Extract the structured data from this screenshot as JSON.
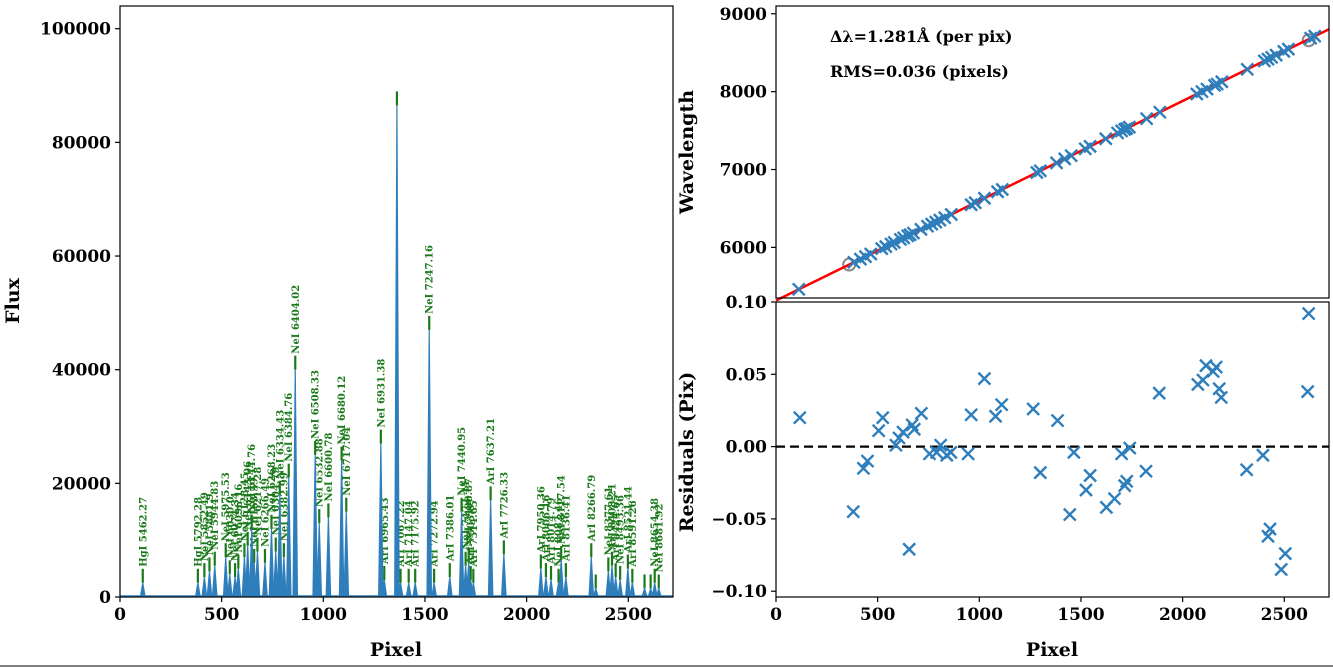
{
  "chart_data": [
    {
      "type": "line",
      "xlabel": "Pixel",
      "ylabel": "Flux",
      "xlim": [
        0,
        2720
      ],
      "ylim": [
        0,
        104000
      ],
      "xticks": [
        0,
        500,
        1000,
        1500,
        2000,
        2500
      ],
      "yticks": [
        0,
        20000,
        40000,
        60000,
        80000,
        100000
      ],
      "colors": {
        "spectrum": "#2f7ebc",
        "marker": "#1a7a1a",
        "label": "#1a7a1a"
      },
      "peaks": [
        {
          "x": 112,
          "y": 2500
        },
        {
          "x": 383,
          "y": 2500
        },
        {
          "x": 415,
          "y": 3500
        },
        {
          "x": 440,
          "y": 4500
        },
        {
          "x": 466,
          "y": 5500
        },
        {
          "x": 520,
          "y": 7000
        },
        {
          "x": 540,
          "y": 4000
        },
        {
          "x": 566,
          "y": 3500
        },
        {
          "x": 582,
          "y": 5000
        },
        {
          "x": 612,
          "y": 7000
        },
        {
          "x": 628,
          "y": 9000
        },
        {
          "x": 648,
          "y": 12000
        },
        {
          "x": 660,
          "y": 6000
        },
        {
          "x": 676,
          "y": 8000
        },
        {
          "x": 713,
          "y": 6000
        },
        {
          "x": 745,
          "y": 12000
        },
        {
          "x": 766,
          "y": 8000
        },
        {
          "x": 786,
          "y": 18000
        },
        {
          "x": 806,
          "y": 7000
        },
        {
          "x": 830,
          "y": 21000
        },
        {
          "x": 862,
          "y": 40000
        },
        {
          "x": 960,
          "y": 25000
        },
        {
          "x": 980,
          "y": 13000
        },
        {
          "x": 1025,
          "y": 14000
        },
        {
          "x": 1090,
          "y": 24000
        },
        {
          "x": 1113,
          "y": 15000
        },
        {
          "x": 1283,
          "y": 27000
        },
        {
          "x": 1300,
          "y": 3000
        },
        {
          "x": 1362,
          "y": 86500
        },
        {
          "x": 1380,
          "y": 2500
        },
        {
          "x": 1420,
          "y": 2500
        },
        {
          "x": 1452,
          "y": 2500
        },
        {
          "x": 1521,
          "y": 47000
        },
        {
          "x": 1545,
          "y": 2500
        },
        {
          "x": 1622,
          "y": 3500
        },
        {
          "x": 1680,
          "y": 15000
        },
        {
          "x": 1700,
          "y": 5500
        },
        {
          "x": 1715,
          "y": 6000
        },
        {
          "x": 1725,
          "y": 3000
        },
        {
          "x": 1738,
          "y": 2500
        },
        {
          "x": 1823,
          "y": 17000
        },
        {
          "x": 1888,
          "y": 7500
        },
        {
          "x": 2070,
          "y": 5000
        },
        {
          "x": 2095,
          "y": 3500
        },
        {
          "x": 2120,
          "y": 3000
        },
        {
          "x": 2157,
          "y": 2500
        },
        {
          "x": 2170,
          "y": 6500
        },
        {
          "x": 2193,
          "y": 3500
        },
        {
          "x": 2318,
          "y": 7000
        },
        {
          "x": 2340,
          "y": 1500
        },
        {
          "x": 2402,
          "y": 4500
        },
        {
          "x": 2420,
          "y": 5500
        },
        {
          "x": 2438,
          "y": 3500
        },
        {
          "x": 2460,
          "y": 3000
        },
        {
          "x": 2498,
          "y": 5000
        },
        {
          "x": 2520,
          "y": 2500
        },
        {
          "x": 2580,
          "y": 1500
        },
        {
          "x": 2610,
          "y": 1500
        },
        {
          "x": 2630,
          "y": 2500
        },
        {
          "x": 2650,
          "y": 1500
        }
      ],
      "line_labels": [
        {
          "x": 112,
          "y": 2500,
          "text": "HgI 5462.27"
        },
        {
          "x": 383,
          "y": 2500,
          "text": "HgI 5792.28"
        },
        {
          "x": 415,
          "y": 3500,
          "text": "NeI 5852.49"
        },
        {
          "x": 440,
          "y": 4500,
          "text": "NeI 5881.9"
        },
        {
          "x": 466,
          "y": 5500,
          "text": "NeI 5944.83"
        },
        {
          "x": 520,
          "y": 7000,
          "text": "NeI 5975.53"
        },
        {
          "x": 540,
          "y": 4000,
          "text": "NeI 6030.0"
        },
        {
          "x": 566,
          "y": 3500,
          "text": "NeI 6074.34"
        },
        {
          "x": 582,
          "y": 5000,
          "text": "NeI 6096.16"
        },
        {
          "x": 612,
          "y": 7000,
          "text": "NeI 6128.45"
        },
        {
          "x": 628,
          "y": 9000,
          "text": "NeI 6143.06"
        },
        {
          "x": 648,
          "y": 12000,
          "text": "NeI 6144.76"
        },
        {
          "x": 660,
          "y": 6000,
          "text": "NeI 6163.59"
        },
        {
          "x": 676,
          "y": 8000,
          "text": "NeI 6217.28"
        },
        {
          "x": 713,
          "y": 6000,
          "text": "NeI 6266.49"
        },
        {
          "x": 745,
          "y": 12000,
          "text": "NeI 6268.23"
        },
        {
          "x": 766,
          "y": 8000,
          "text": "NeI 6304.79"
        },
        {
          "x": 786,
          "y": 18000,
          "text": "NeI 6334.43"
        },
        {
          "x": 806,
          "y": 7000,
          "text": "NeI 6382.99"
        },
        {
          "x": 830,
          "y": 21000,
          "text": "NeI 6384.76"
        },
        {
          "x": 862,
          "y": 40000,
          "text": "NeI 6404.02"
        },
        {
          "x": 960,
          "y": 25000,
          "text": "NeI 6508.33"
        },
        {
          "x": 980,
          "y": 13000,
          "text": "NeI 6532.88"
        },
        {
          "x": 1025,
          "y": 14000,
          "text": "NeI 6600.78"
        },
        {
          "x": 1090,
          "y": 24000,
          "text": "NeI 6680.12"
        },
        {
          "x": 1113,
          "y": 15000,
          "text": "NeI 6717.04"
        },
        {
          "x": 1283,
          "y": 27000,
          "text": "NeI 6931.38"
        },
        {
          "x": 1300,
          "y": 3000,
          "text": "ArI 6965.43"
        },
        {
          "x": 1380,
          "y": 2500,
          "text": "ArI 7067.22"
        },
        {
          "x": 1420,
          "y": 2500,
          "text": "ArI 7147.04"
        },
        {
          "x": 1452,
          "y": 2500,
          "text": "ArI 7175.92"
        },
        {
          "x": 1521,
          "y": 47000,
          "text": "NeI 7247.16"
        },
        {
          "x": 1545,
          "y": 2500,
          "text": "ArI 7272.94"
        },
        {
          "x": 1622,
          "y": 3500,
          "text": "ArI 7386.01"
        },
        {
          "x": 1680,
          "y": 15000,
          "text": "NeI 7440.95"
        },
        {
          "x": 1700,
          "y": 5500,
          "text": "NeI 7472.44"
        },
        {
          "x": 1715,
          "y": 6000,
          "text": "NeI 7488.87"
        },
        {
          "x": 1725,
          "y": 3000,
          "text": "ArI 7503.87"
        },
        {
          "x": 1738,
          "y": 2500,
          "text": "ArI 7514.65"
        },
        {
          "x": 1823,
          "y": 17000,
          "text": "ArI 7637.21"
        },
        {
          "x": 1888,
          "y": 7500,
          "text": "ArI 7726.33"
        },
        {
          "x": 2070,
          "y": 5000,
          "text": "ArI 7950.36"
        },
        {
          "x": 2095,
          "y": 3500,
          "text": "ArI 8006.16"
        },
        {
          "x": 2120,
          "y": 3000,
          "text": "ArI 8014.79"
        },
        {
          "x": 2157,
          "y": 2500,
          "text": "NeI 8082.46"
        },
        {
          "x": 2170,
          "y": 6500,
          "text": "NeI 8117.54"
        },
        {
          "x": 2193,
          "y": 3500,
          "text": "ArI 8136.41"
        },
        {
          "x": 2318,
          "y": 7000,
          "text": "ArI 8266.79"
        },
        {
          "x": 2402,
          "y": 4500,
          "text": "NeI 8377.61"
        },
        {
          "x": 2420,
          "y": 5500,
          "text": "ArI 8408.21"
        },
        {
          "x": 2438,
          "y": 3500,
          "text": "ArI 8424.65"
        },
        {
          "x": 2460,
          "y": 3000,
          "text": "NeI 8495.36"
        },
        {
          "x": 2498,
          "y": 5000,
          "text": "ArI 8521.44"
        },
        {
          "x": 2520,
          "y": 2500,
          "text": "ArI 8591.26"
        },
        {
          "x": 2630,
          "y": 2500,
          "text": "NeI 8654.38"
        },
        {
          "x": 2650,
          "y": 1500,
          "text": "NeI 8681.92"
        }
      ]
    },
    {
      "type": "scatter",
      "xlabel": "",
      "ylabel": "Wavelength",
      "xlim": [
        0,
        2720
      ],
      "ylim": [
        5350,
        9100
      ],
      "yticks": [
        6000,
        7000,
        8000,
        9000
      ],
      "annotations": [
        "Δλ=1.281Å (per pix)",
        "RMS=0.036 (pixels)"
      ],
      "fit_line": {
        "x": [
          0,
          2720
        ],
        "y": [
          5318,
          8802
        ],
        "color": "#ff0000"
      },
      "marker_color": "#2f7ebc",
      "rejected_color": "#888888",
      "points": [
        112,
        383,
        415,
        440,
        466,
        520,
        540,
        566,
        582,
        612,
        628,
        648,
        660,
        676,
        713,
        745,
        766,
        786,
        806,
        830,
        862,
        960,
        980,
        1025,
        1090,
        1113,
        1283,
        1300,
        1380,
        1420,
        1452,
        1521,
        1545,
        1622,
        1680,
        1700,
        1715,
        1725,
        1738,
        1823,
        1888,
        2070,
        2095,
        2120,
        2157,
        2170,
        2193,
        2318,
        2402,
        2420,
        2438,
        2460,
        2498,
        2520,
        2630,
        2650
      ],
      "rejected": [
        {
          "x": 360,
          "y": 5780
        },
        {
          "x": 2620,
          "y": 8660
        }
      ]
    },
    {
      "type": "scatter",
      "xlabel": "Pixel",
      "ylabel": "Residuals (Pix)",
      "xlim": [
        0,
        2720
      ],
      "ylim": [
        -0.104,
        0.1
      ],
      "xticks": [
        0,
        500,
        1000,
        1500,
        2000,
        2500
      ],
      "yticks": [
        -0.1,
        -0.05,
        0.0,
        0.05,
        0.1
      ],
      "ytick_labels": [
        "−0.10",
        "−0.05",
        "0.00",
        "0.05",
        "0.10"
      ],
      "reference_line": 0,
      "marker_color": "#2f7ebc",
      "points": [
        {
          "x": 117,
          "y": 0.02
        },
        {
          "x": 380,
          "y": -0.045
        },
        {
          "x": 430,
          "y": -0.015
        },
        {
          "x": 450,
          "y": -0.01
        },
        {
          "x": 505,
          "y": 0.011
        },
        {
          "x": 525,
          "y": 0.02
        },
        {
          "x": 590,
          "y": 0.001
        },
        {
          "x": 605,
          "y": 0.006
        },
        {
          "x": 625,
          "y": 0.01
        },
        {
          "x": 655,
          "y": -0.071
        },
        {
          "x": 670,
          "y": 0.015
        },
        {
          "x": 680,
          "y": 0.012
        },
        {
          "x": 715,
          "y": 0.023
        },
        {
          "x": 755,
          "y": -0.005
        },
        {
          "x": 790,
          "y": -0.004
        },
        {
          "x": 810,
          "y": 0.001
        },
        {
          "x": 840,
          "y": -0.006
        },
        {
          "x": 860,
          "y": -0.004
        },
        {
          "x": 945,
          "y": -0.005
        },
        {
          "x": 960,
          "y": 0.022
        },
        {
          "x": 1025,
          "y": 0.047
        },
        {
          "x": 1080,
          "y": 0.021
        },
        {
          "x": 1110,
          "y": 0.029
        },
        {
          "x": 1265,
          "y": 0.026
        },
        {
          "x": 1300,
          "y": -0.018
        },
        {
          "x": 1385,
          "y": 0.018
        },
        {
          "x": 1445,
          "y": -0.047
        },
        {
          "x": 1465,
          "y": -0.004
        },
        {
          "x": 1525,
          "y": -0.03
        },
        {
          "x": 1545,
          "y": -0.02
        },
        {
          "x": 1625,
          "y": -0.042
        },
        {
          "x": 1665,
          "y": -0.036
        },
        {
          "x": 1700,
          "y": -0.005
        },
        {
          "x": 1715,
          "y": -0.027
        },
        {
          "x": 1725,
          "y": -0.024
        },
        {
          "x": 1740,
          "y": -0.001
        },
        {
          "x": 1820,
          "y": -0.017
        },
        {
          "x": 1885,
          "y": 0.037
        },
        {
          "x": 2075,
          "y": 0.043
        },
        {
          "x": 2100,
          "y": 0.046
        },
        {
          "x": 2115,
          "y": 0.056
        },
        {
          "x": 2150,
          "y": 0.052
        },
        {
          "x": 2165,
          "y": 0.055
        },
        {
          "x": 2180,
          "y": 0.04
        },
        {
          "x": 2190,
          "y": 0.034
        },
        {
          "x": 2315,
          "y": -0.016
        },
        {
          "x": 2395,
          "y": -0.006
        },
        {
          "x": 2420,
          "y": -0.062
        },
        {
          "x": 2430,
          "y": -0.057
        },
        {
          "x": 2485,
          "y": -0.085
        },
        {
          "x": 2505,
          "y": -0.074
        },
        {
          "x": 2615,
          "y": 0.038
        },
        {
          "x": 2620,
          "y": 0.092
        }
      ]
    }
  ]
}
